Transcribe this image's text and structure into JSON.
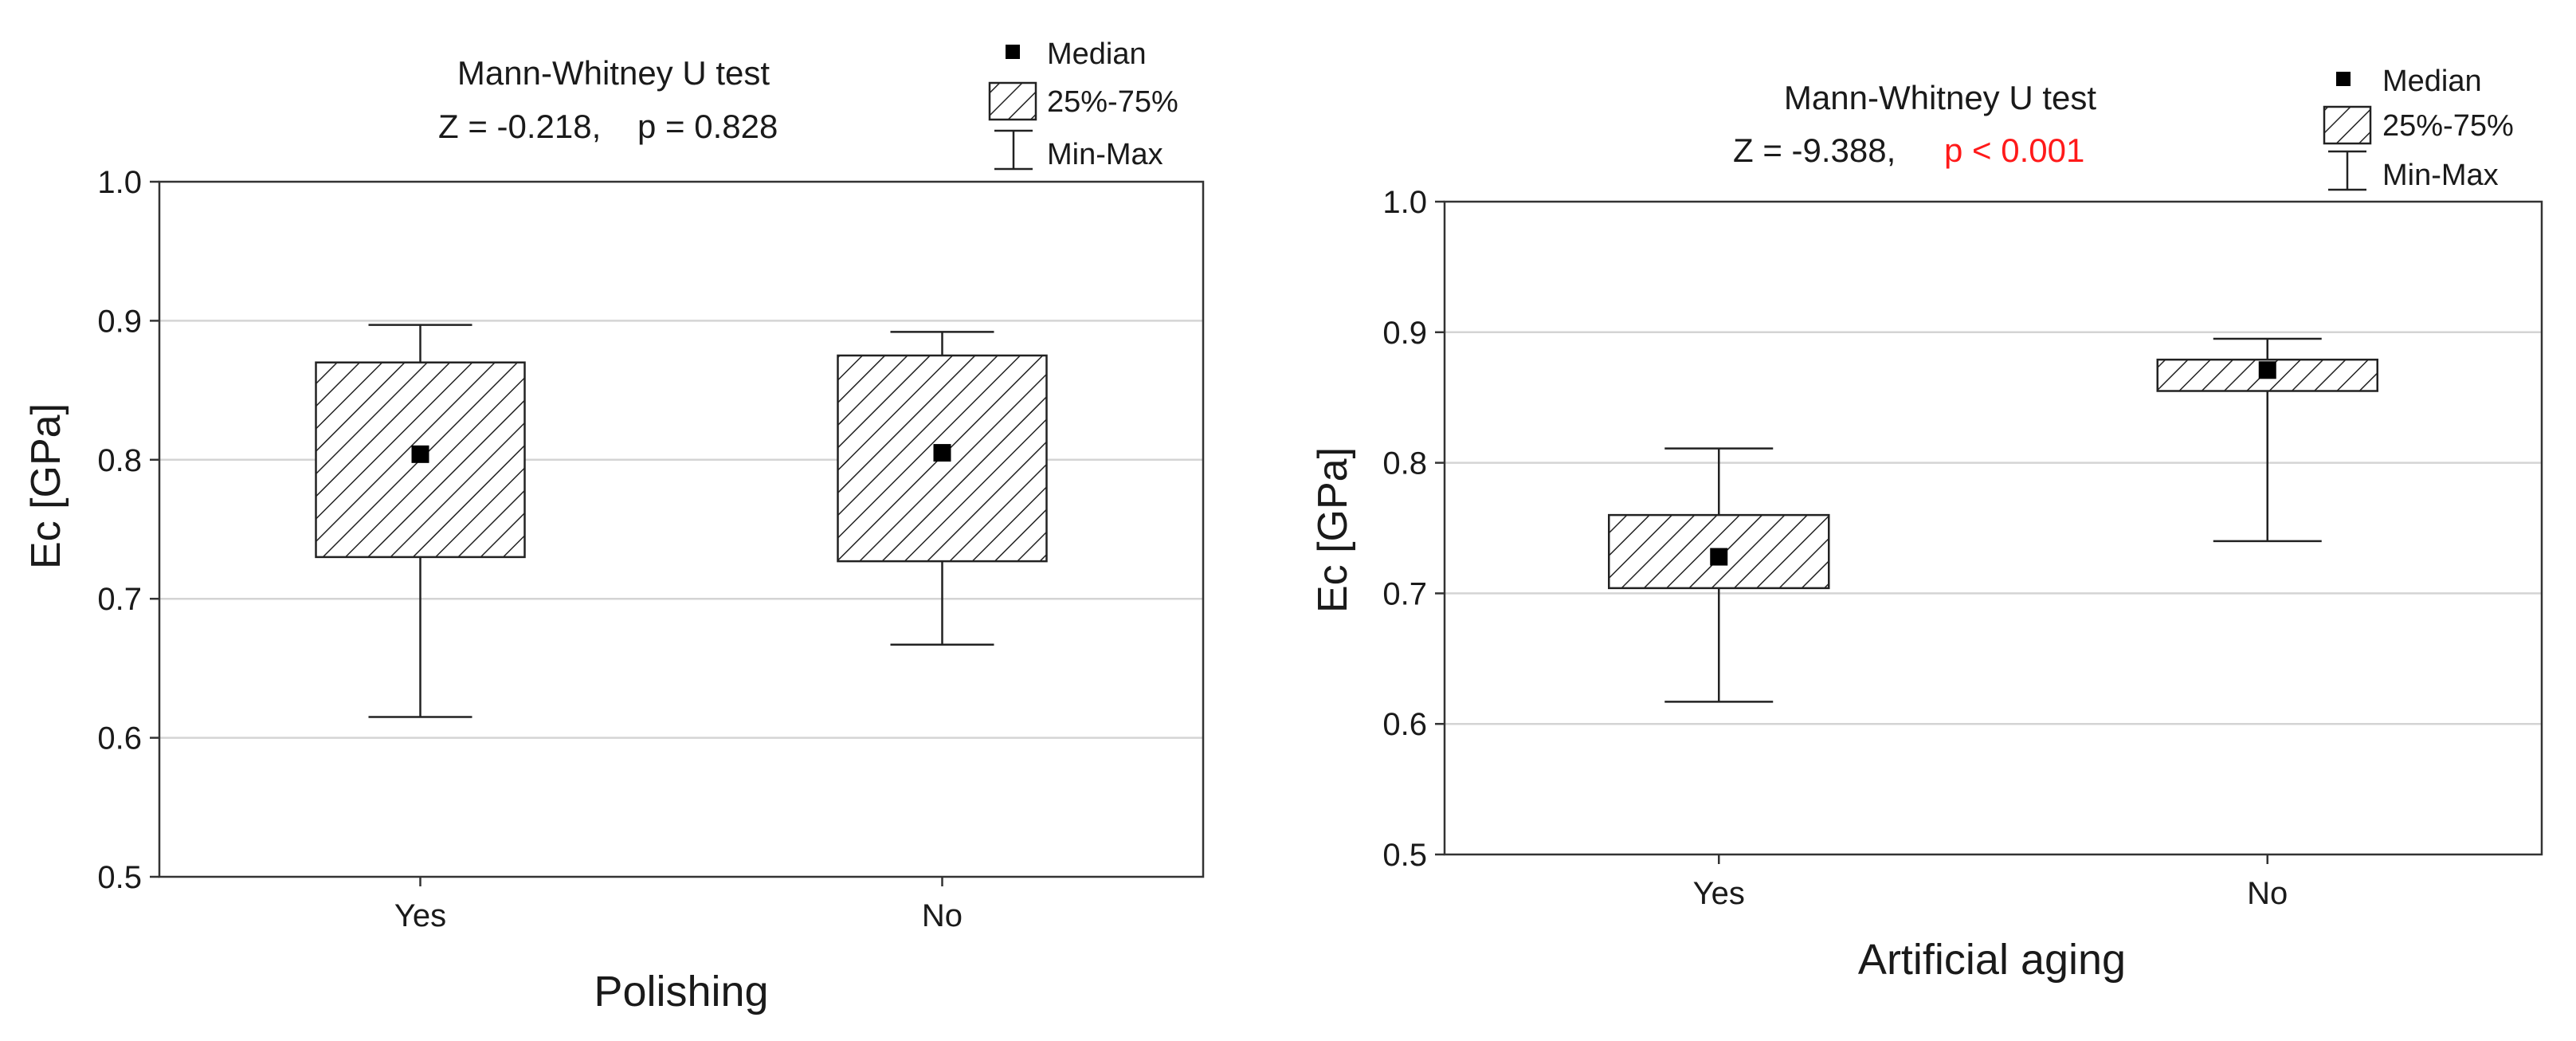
{
  "chart_data": [
    {
      "type": "box",
      "xlabel": "Polishing",
      "ylabel": "Ec [GPa]",
      "ylim": [
        0.5,
        1.0
      ],
      "yticks": [
        "0.5",
        "0.6",
        "0.7",
        "0.8",
        "0.9",
        "1.0"
      ],
      "grid": "horizontal",
      "categories": [
        "Yes",
        "No"
      ],
      "boxes": [
        {
          "category": "Yes",
          "min": 0.615,
          "q1": 0.73,
          "median": 0.804,
          "q3": 0.87,
          "max": 0.897
        },
        {
          "category": "No",
          "min": 0.667,
          "q1": 0.727,
          "median": 0.805,
          "q3": 0.875,
          "max": 0.892
        }
      ],
      "annotation": {
        "title": "Mann-Whitney U test",
        "stat": "Z = -0.218,",
        "pvalue": "p = 0.828",
        "pvalue_color": "#1a1a1a"
      },
      "legend": {
        "median": "Median",
        "box": "25%-75%",
        "whisker": "Min-Max",
        "placement": "top-right"
      }
    },
    {
      "type": "box",
      "xlabel": "Artificial aging",
      "ylabel": "Ec [GPa]",
      "ylim": [
        0.5,
        1.0
      ],
      "yticks": [
        "0.5",
        "0.6",
        "0.7",
        "0.8",
        "0.9",
        "1.0"
      ],
      "grid": "horizontal",
      "categories": [
        "Yes",
        "No"
      ],
      "boxes": [
        {
          "category": "Yes",
          "min": 0.617,
          "q1": 0.704,
          "median": 0.728,
          "q3": 0.76,
          "max": 0.811
        },
        {
          "category": "No",
          "min": 0.74,
          "q1": 0.855,
          "median": 0.871,
          "q3": 0.879,
          "max": 0.895
        }
      ],
      "annotation": {
        "title": "Mann-Whitney U test",
        "stat": "Z = -9.388,",
        "pvalue": "p < 0.001",
        "pvalue_color": "#ff1a1a"
      },
      "legend": {
        "median": "Median",
        "box": "25%-75%",
        "whisker": "Min-Max",
        "placement": "top-right"
      }
    }
  ]
}
